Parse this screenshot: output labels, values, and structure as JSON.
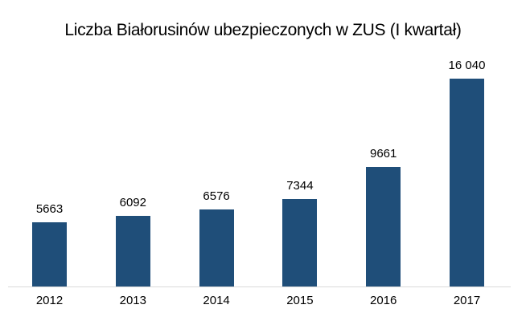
{
  "chart_data": {
    "type": "bar",
    "title": "Liczba Białorusinów ubezpieczonych w ZUS (I kwartał)",
    "categories": [
      "2012",
      "2013",
      "2014",
      "2015",
      "2016",
      "2017"
    ],
    "values": [
      5663,
      6092,
      6576,
      7344,
      9661,
      16040
    ],
    "value_labels": [
      "5663",
      "6092",
      "6576",
      "7344",
      "9661",
      "16 040"
    ],
    "xlabel": "",
    "ylabel": "",
    "ylim": [
      1000,
      18000
    ],
    "grid": false,
    "legend": false,
    "data_labels_position": "above-bar",
    "bar_color": "#1F4E79",
    "axis_line_color": "#D9D9D9",
    "label_color": "#000000",
    "background_color": "#FFFFFF"
  }
}
